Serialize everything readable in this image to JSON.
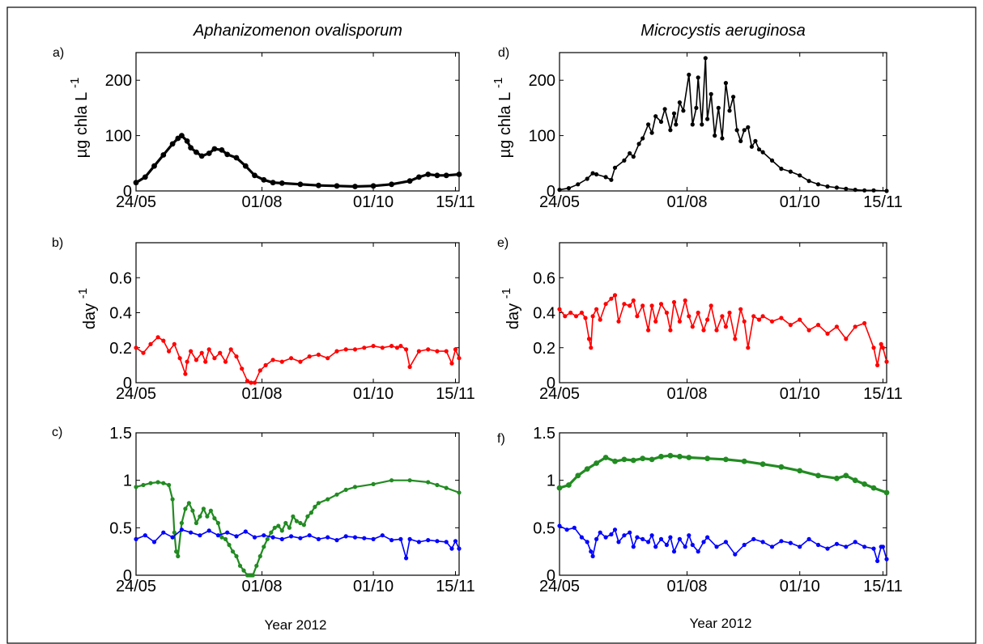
{
  "figure": {
    "titles": [
      "Aphanizomenon ovalisporum",
      "Microcystis aeruginosa"
    ],
    "xlabel": "Year 2012"
  },
  "chart_data": [
    {
      "panel": "a)",
      "type": "line",
      "column": "Aphanizomenon ovalisporum",
      "ylabel": "µg chla L",
      "ylabel_sup": "-1",
      "xticks": [
        "24/05",
        "01/08",
        "01/10",
        "15/11"
      ],
      "xlim": [
        0,
        177
      ],
      "xtick_days": [
        0,
        69,
        130,
        175
      ],
      "yticks": [
        0,
        100,
        200
      ],
      "ylim": [
        0,
        250
      ],
      "series": [
        {
          "color": "#000000",
          "line_width": 3.2,
          "x": [
            0,
            5,
            10,
            15,
            20,
            23,
            25,
            28,
            30,
            33,
            36,
            40,
            43,
            47,
            50,
            55,
            60,
            65,
            70,
            75,
            80,
            90,
            100,
            110,
            120,
            130,
            140,
            150,
            155,
            160,
            165,
            170,
            177
          ],
          "y": [
            15,
            25,
            45,
            65,
            85,
            95,
            100,
            90,
            78,
            70,
            63,
            68,
            76,
            74,
            66,
            60,
            45,
            28,
            20,
            15,
            14,
            12,
            10,
            9,
            8,
            9,
            12,
            18,
            25,
            30,
            28,
            28,
            30
          ]
        }
      ]
    },
    {
      "panel": "b)",
      "type": "line",
      "column": "Aphanizomenon ovalisporum",
      "ylabel": "day",
      "ylabel_sup": "-1",
      "xticks": [
        "24/05",
        "01/08",
        "01/10",
        "15/11"
      ],
      "xlim": [
        0,
        177
      ],
      "xtick_days": [
        0,
        69,
        130,
        175
      ],
      "yticks": [
        0,
        0.2,
        0.4,
        0.6
      ],
      "ylim": [
        0,
        0.8
      ],
      "series": [
        {
          "color": "#ff0000",
          "line_width": 1.6,
          "x": [
            0,
            4,
            8,
            12,
            15,
            18,
            21,
            24,
            27,
            28,
            30,
            33,
            36,
            38,
            40,
            43,
            46,
            49,
            52,
            55,
            58,
            61,
            63,
            65,
            68,
            71,
            75,
            80,
            85,
            90,
            95,
            100,
            105,
            110,
            115,
            120,
            125,
            130,
            135,
            140,
            143,
            145,
            148,
            150,
            155,
            160,
            165,
            170,
            173,
            175,
            177
          ],
          "y": [
            0.2,
            0.17,
            0.22,
            0.26,
            0.24,
            0.18,
            0.22,
            0.14,
            0.05,
            0.12,
            0.18,
            0.13,
            0.17,
            0.12,
            0.19,
            0.14,
            0.17,
            0.12,
            0.19,
            0.15,
            0.08,
            0.01,
            0.0,
            0.0,
            0.07,
            0.1,
            0.13,
            0.12,
            0.14,
            0.12,
            0.15,
            0.16,
            0.14,
            0.18,
            0.19,
            0.19,
            0.2,
            0.21,
            0.2,
            0.21,
            0.2,
            0.21,
            0.19,
            0.09,
            0.18,
            0.19,
            0.18,
            0.18,
            0.11,
            0.19,
            0.14
          ]
        }
      ]
    },
    {
      "panel": "c)",
      "type": "line",
      "column": "Aphanizomenon ovalisporum",
      "xticks": [
        "24/05",
        "01/08",
        "01/10",
        "15/11"
      ],
      "xlim": [
        0,
        177
      ],
      "xtick_days": [
        0,
        69,
        130,
        175
      ],
      "yticks": [
        0,
        0.5,
        1,
        1.5
      ],
      "ylim": [
        0,
        1.5
      ],
      "series": [
        {
          "color": "#228b22",
          "line_width": 2.2,
          "x": [
            0,
            4,
            8,
            12,
            15,
            18,
            20,
            21,
            22,
            23,
            25,
            27,
            29,
            31,
            33,
            35,
            37,
            39,
            41,
            43,
            45,
            47,
            49,
            51,
            53,
            55,
            57,
            59,
            61,
            62,
            63,
            64,
            66,
            68,
            70,
            72,
            74,
            76,
            78,
            80,
            82,
            84,
            86,
            88,
            90,
            92,
            94,
            96,
            98,
            100,
            105,
            110,
            115,
            120,
            130,
            140,
            150,
            160,
            165,
            170,
            177
          ],
          "y": [
            0.93,
            0.95,
            0.97,
            0.98,
            0.97,
            0.95,
            0.8,
            0.45,
            0.25,
            0.2,
            0.55,
            0.7,
            0.76,
            0.68,
            0.55,
            0.62,
            0.7,
            0.62,
            0.68,
            0.6,
            0.55,
            0.4,
            0.38,
            0.32,
            0.25,
            0.2,
            0.1,
            0.05,
            0.0,
            0.0,
            0.0,
            0.0,
            0.1,
            0.2,
            0.3,
            0.38,
            0.45,
            0.5,
            0.52,
            0.47,
            0.55,
            0.5,
            0.62,
            0.57,
            0.55,
            0.53,
            0.62,
            0.66,
            0.72,
            0.76,
            0.8,
            0.85,
            0.9,
            0.93,
            0.96,
            1.0,
            1.0,
            0.98,
            0.95,
            0.92,
            0.87
          ]
        },
        {
          "color": "#0000ff",
          "line_width": 1.6,
          "x": [
            0,
            5,
            10,
            15,
            20,
            25,
            30,
            35,
            40,
            45,
            50,
            55,
            60,
            65,
            70,
            75,
            80,
            85,
            90,
            95,
            100,
            105,
            110,
            115,
            120,
            125,
            130,
            135,
            140,
            145,
            148,
            150,
            155,
            160,
            165,
            170,
            173,
            175,
            177
          ],
          "y": [
            0.38,
            0.42,
            0.35,
            0.45,
            0.4,
            0.48,
            0.45,
            0.42,
            0.47,
            0.42,
            0.45,
            0.41,
            0.46,
            0.4,
            0.42,
            0.4,
            0.38,
            0.41,
            0.39,
            0.42,
            0.38,
            0.4,
            0.37,
            0.41,
            0.4,
            0.39,
            0.38,
            0.42,
            0.37,
            0.38,
            0.18,
            0.38,
            0.35,
            0.37,
            0.36,
            0.35,
            0.28,
            0.36,
            0.28
          ]
        }
      ]
    },
    {
      "panel": "d)",
      "type": "line",
      "column": "Microcystis aeruginosa",
      "ylabel": "µg chla L",
      "ylabel_sup": "-1",
      "xticks": [
        "24/05",
        "01/08",
        "01/10",
        "15/11"
      ],
      "xlim": [
        0,
        177
      ],
      "xtick_days": [
        0,
        69,
        130,
        175
      ],
      "yticks": [
        0,
        100,
        200
      ],
      "ylim": [
        0,
        250
      ],
      "series": [
        {
          "color": "#000000",
          "line_width": 1.6,
          "x": [
            0,
            5,
            10,
            15,
            18,
            20,
            25,
            28,
            30,
            35,
            38,
            40,
            43,
            45,
            48,
            50,
            52,
            55,
            57,
            60,
            62,
            63,
            65,
            67,
            70,
            72,
            74,
            75,
            77,
            79,
            80,
            82,
            84,
            86,
            88,
            90,
            92,
            94,
            96,
            98,
            100,
            102,
            104,
            106,
            108,
            110,
            115,
            120,
            125,
            130,
            135,
            140,
            145,
            150,
            155,
            160,
            165,
            170,
            177
          ],
          "y": [
            2,
            5,
            12,
            22,
            32,
            30,
            25,
            20,
            42,
            55,
            68,
            62,
            85,
            95,
            120,
            105,
            135,
            125,
            148,
            110,
            140,
            120,
            160,
            145,
            210,
            120,
            150,
            205,
            120,
            240,
            130,
            175,
            100,
            150,
            95,
            195,
            145,
            170,
            110,
            90,
            110,
            115,
            80,
            90,
            75,
            70,
            55,
            40,
            35,
            28,
            18,
            12,
            8,
            6,
            4,
            2,
            1,
            1,
            0
          ]
        }
      ]
    },
    {
      "panel": "e)",
      "type": "line",
      "column": "Microcystis aeruginosa",
      "ylabel": "day",
      "ylabel_sup": "-1",
      "xticks": [
        "24/05",
        "01/08",
        "01/10",
        "15/11"
      ],
      "xlim": [
        0,
        177
      ],
      "xtick_days": [
        0,
        69,
        130,
        175
      ],
      "yticks": [
        0,
        0.2,
        0.4,
        0.6
      ],
      "ylim": [
        0,
        0.8
      ],
      "series": [
        {
          "color": "#ff0000",
          "line_width": 1.6,
          "x": [
            0,
            3,
            6,
            9,
            12,
            14,
            16,
            17,
            18,
            20,
            22,
            25,
            28,
            30,
            32,
            35,
            38,
            40,
            42,
            45,
            48,
            50,
            52,
            55,
            58,
            60,
            62,
            65,
            68,
            70,
            72,
            75,
            78,
            80,
            82,
            85,
            88,
            90,
            92,
            95,
            98,
            100,
            102,
            105,
            108,
            110,
            115,
            120,
            125,
            130,
            135,
            140,
            145,
            150,
            155,
            160,
            165,
            170,
            172,
            174,
            175,
            177
          ],
          "y": [
            0.42,
            0.38,
            0.4,
            0.38,
            0.4,
            0.37,
            0.25,
            0.2,
            0.38,
            0.42,
            0.36,
            0.45,
            0.48,
            0.5,
            0.35,
            0.45,
            0.44,
            0.47,
            0.38,
            0.44,
            0.3,
            0.44,
            0.35,
            0.45,
            0.4,
            0.3,
            0.46,
            0.35,
            0.47,
            0.38,
            0.32,
            0.4,
            0.3,
            0.36,
            0.44,
            0.3,
            0.38,
            0.32,
            0.4,
            0.25,
            0.42,
            0.35,
            0.2,
            0.38,
            0.36,
            0.38,
            0.35,
            0.37,
            0.33,
            0.36,
            0.3,
            0.33,
            0.28,
            0.32,
            0.25,
            0.32,
            0.34,
            0.2,
            0.1,
            0.22,
            0.2,
            0.12
          ]
        }
      ]
    },
    {
      "panel": "f)",
      "type": "line",
      "column": "Microcystis aeruginosa",
      "xticks": [
        "24/05",
        "01/08",
        "01/10",
        "15/11"
      ],
      "xlim": [
        0,
        177
      ],
      "xtick_days": [
        0,
        69,
        130,
        175
      ],
      "yticks": [
        0,
        0.5,
        1,
        1.5
      ],
      "ylim": [
        0,
        1.5
      ],
      "series": [
        {
          "color": "#228b22",
          "line_width": 3.2,
          "x": [
            0,
            5,
            10,
            15,
            20,
            25,
            30,
            35,
            40,
            45,
            50,
            55,
            60,
            65,
            70,
            80,
            90,
            100,
            110,
            120,
            130,
            140,
            150,
            155,
            160,
            165,
            170,
            177
          ],
          "y": [
            0.92,
            0.95,
            1.05,
            1.12,
            1.18,
            1.24,
            1.2,
            1.22,
            1.21,
            1.23,
            1.22,
            1.25,
            1.26,
            1.25,
            1.24,
            1.23,
            1.22,
            1.2,
            1.17,
            1.14,
            1.1,
            1.05,
            1.02,
            1.05,
            1.0,
            0.96,
            0.92,
            0.87
          ]
        },
        {
          "color": "#0000ff",
          "line_width": 1.6,
          "x": [
            0,
            4,
            8,
            12,
            15,
            17,
            18,
            20,
            22,
            25,
            28,
            30,
            32,
            35,
            38,
            40,
            42,
            45,
            48,
            50,
            52,
            55,
            58,
            60,
            62,
            65,
            68,
            70,
            72,
            75,
            78,
            80,
            85,
            90,
            95,
            100,
            105,
            110,
            115,
            120,
            125,
            130,
            135,
            140,
            145,
            150,
            155,
            160,
            165,
            170,
            172,
            174,
            175,
            177
          ],
          "y": [
            0.52,
            0.48,
            0.5,
            0.4,
            0.35,
            0.25,
            0.2,
            0.38,
            0.45,
            0.4,
            0.43,
            0.48,
            0.35,
            0.42,
            0.45,
            0.3,
            0.4,
            0.38,
            0.35,
            0.42,
            0.3,
            0.38,
            0.32,
            0.4,
            0.25,
            0.38,
            0.3,
            0.42,
            0.32,
            0.25,
            0.35,
            0.4,
            0.3,
            0.35,
            0.22,
            0.32,
            0.38,
            0.35,
            0.3,
            0.36,
            0.34,
            0.3,
            0.38,
            0.32,
            0.28,
            0.33,
            0.3,
            0.35,
            0.3,
            0.28,
            0.15,
            0.3,
            0.3,
            0.17
          ]
        }
      ]
    }
  ]
}
